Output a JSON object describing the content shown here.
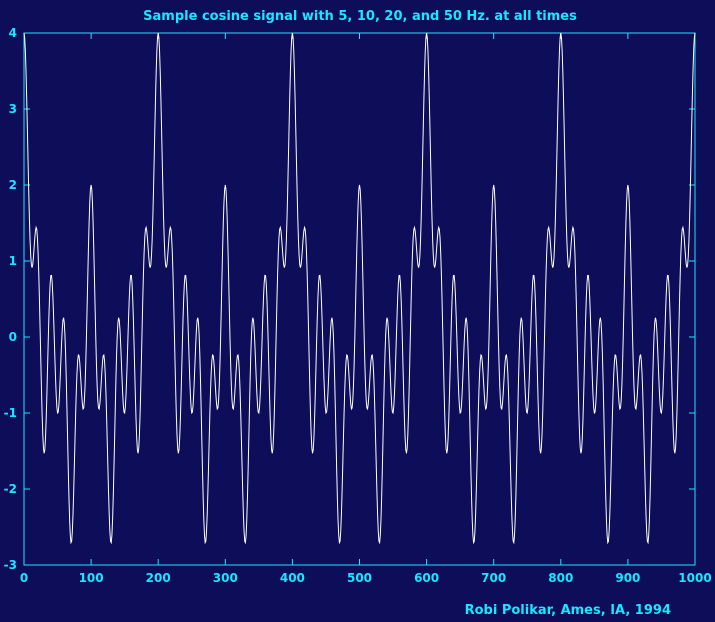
{
  "chart_data": {
    "type": "line",
    "title": "Sample cosine signal with 5, 10, 20, and 50 Hz. at all times",
    "credit": "Robi Polikar, Ames, IA, 1994",
    "xlim": [
      0,
      1000
    ],
    "ylim": [
      -3,
      4
    ],
    "xticks": [
      0,
      100,
      200,
      300,
      400,
      500,
      600,
      700,
      800,
      900,
      1000
    ],
    "yticks": [
      -3,
      -2,
      -1,
      0,
      1,
      2,
      3,
      4
    ],
    "grid": false,
    "signal": {
      "formula": "cos(2*pi*5*t) + cos(2*pi*10*t) + cos(2*pi*20*t) + cos(2*pi*50*t)",
      "sample_rate_hz": 1000,
      "frequencies_hz": [
        5,
        10,
        20,
        50
      ],
      "n_samples": 1001
    },
    "line_color": "#ffffff",
    "axis_color": "#19e6ff",
    "background_color": "#0d0d59"
  }
}
